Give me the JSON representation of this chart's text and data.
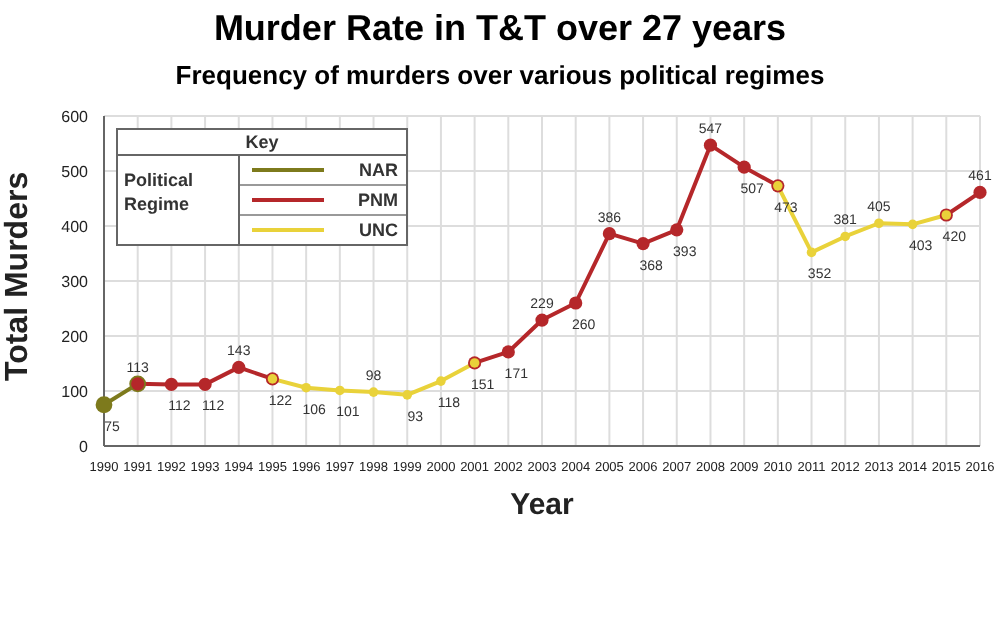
{
  "chart_data": {
    "type": "line",
    "title": "Murder Rate in T&T over 27 years",
    "subtitle": "Frequency of murders over various political regimes",
    "xlabel": "Year",
    "ylabel": "Total Murders",
    "legend_title": "Key",
    "annotations": [
      "Political Regime"
    ],
    "categories": [
      "1990",
      "1991",
      "1992",
      "1993",
      "1994",
      "1995",
      "1996",
      "1997",
      "1998",
      "1999",
      "2000",
      "2001",
      "2002",
      "2003",
      "2004",
      "2005",
      "2006",
      "2007",
      "2008",
      "2009",
      "2010",
      "2011",
      "2012",
      "2013",
      "2014",
      "2015",
      "2016"
    ],
    "series": [
      {
        "name": "NAR",
        "color": "#7d7a1c",
        "values": [
          75,
          113,
          null,
          null,
          null,
          null,
          null,
          null,
          null,
          null,
          null,
          null,
          null,
          null,
          null,
          null,
          null,
          null,
          null,
          null,
          null,
          null,
          null,
          null,
          null,
          null,
          null
        ],
        "value_labels": [
          "75",
          null,
          null,
          null,
          null,
          null,
          null,
          null,
          null,
          null,
          null,
          null,
          null,
          null,
          null,
          null,
          null,
          null,
          null,
          null,
          null,
          null,
          null,
          null,
          null,
          null,
          null
        ]
      },
      {
        "name": "PNM",
        "color": "#b5272a",
        "values": [
          null,
          113,
          112,
          112,
          143,
          122,
          null,
          null,
          null,
          null,
          null,
          151,
          171,
          229,
          260,
          386,
          368,
          393,
          547,
          507,
          473,
          null,
          null,
          null,
          null,
          420,
          461
        ],
        "value_labels": [
          null,
          "113",
          "112",
          "112",
          "143",
          "122",
          null,
          null,
          null,
          null,
          null,
          "151",
          "171",
          "229",
          "260",
          "386",
          "368",
          "393",
          "547",
          "507",
          "473",
          null,
          null,
          null,
          null,
          "420",
          "461"
        ]
      },
      {
        "name": "UNC",
        "color": "#e9d23a",
        "values": [
          null,
          null,
          null,
          null,
          null,
          122,
          106,
          101,
          98,
          93,
          118,
          151,
          null,
          null,
          null,
          null,
          null,
          null,
          null,
          null,
          473,
          352,
          381,
          405,
          403,
          420,
          null
        ],
        "value_labels": [
          null,
          null,
          null,
          null,
          null,
          null,
          "106",
          "101",
          "98",
          "93",
          "118",
          null,
          null,
          null,
          null,
          null,
          null,
          null,
          null,
          null,
          null,
          "352",
          "381",
          "405",
          "403",
          null,
          null
        ]
      }
    ],
    "ylim": [
      0,
      600
    ],
    "yticks": [
      0,
      100,
      200,
      300,
      400,
      500,
      600
    ],
    "grid": true,
    "legend": "top left",
    "marker": "circle",
    "line_style": "solid"
  }
}
